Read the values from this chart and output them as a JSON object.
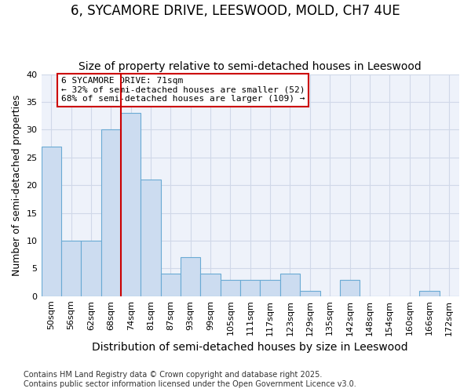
{
  "title": "6, SYCAMORE DRIVE, LEESWOOD, MOLD, CH7 4UE",
  "subtitle": "Size of property relative to semi-detached houses in Leeswood",
  "xlabel": "Distribution of semi-detached houses by size in Leeswood",
  "ylabel": "Number of semi-detached properties",
  "categories": [
    "50sqm",
    "56sqm",
    "62sqm",
    "68sqm",
    "74sqm",
    "81sqm",
    "87sqm",
    "93sqm",
    "99sqm",
    "105sqm",
    "111sqm",
    "117sqm",
    "123sqm",
    "129sqm",
    "135sqm",
    "142sqm",
    "148sqm",
    "154sqm",
    "160sqm",
    "166sqm",
    "172sqm"
  ],
  "values": [
    27,
    10,
    10,
    30,
    33,
    21,
    4,
    7,
    4,
    3,
    3,
    3,
    4,
    1,
    0,
    3,
    0,
    0,
    0,
    1,
    0
  ],
  "bar_color": "#ccdcf0",
  "bar_edge_color": "#6aaad4",
  "grid_color": "#d0d8e8",
  "bg_color": "#ffffff",
  "plot_bg_color": "#eef2fa",
  "vline_x_index": 4,
  "vline_color": "#cc0000",
  "annotation_text": "6 SYCAMORE DRIVE: 71sqm\n← 32% of semi-detached houses are smaller (52)\n68% of semi-detached houses are larger (109) →",
  "annotation_box_color": "#ffffff",
  "annotation_box_edge": "#cc0000",
  "footnote": "Contains HM Land Registry data © Crown copyright and database right 2025.\nContains public sector information licensed under the Open Government Licence v3.0.",
  "ylim": [
    0,
    40
  ],
  "title_fontsize": 12,
  "subtitle_fontsize": 10,
  "xlabel_fontsize": 10,
  "ylabel_fontsize": 9,
  "tick_fontsize": 8,
  "annotation_fontsize": 8,
  "footnote_fontsize": 7
}
